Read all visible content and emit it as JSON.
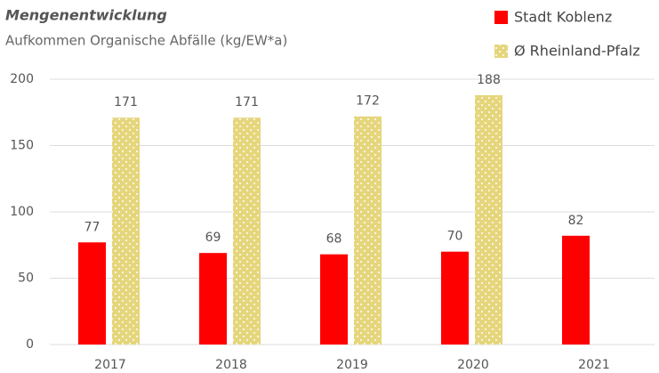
{
  "chart_data": {
    "type": "bar",
    "title": "Mengenentwicklung",
    "subtitle": "Aufkommen Organische Abfälle (kg/EW*a)",
    "categories": [
      "2017",
      "2018",
      "2019",
      "2020",
      "2021"
    ],
    "series": [
      {
        "name": "Stadt Koblenz",
        "color": "#ff0000",
        "values": [
          77,
          69,
          68,
          70,
          82
        ]
      },
      {
        "name": "Ø Rheinland-Pfalz",
        "color": "#e5d67c",
        "pattern": "dots",
        "values": [
          171,
          171,
          172,
          188,
          null
        ]
      }
    ],
    "ylim": [
      0,
      200
    ],
    "yticks": [
      0,
      50,
      100,
      150,
      200
    ],
    "grid": true,
    "legend": "top-right"
  }
}
